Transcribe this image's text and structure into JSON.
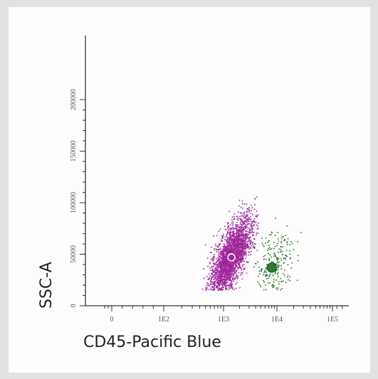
{
  "chart_data": {
    "type": "scatter",
    "xlabel": "CD45-Pacific Blue",
    "ylabel": "SSC-A",
    "x_scale": "biexponential",
    "x_ticks": [
      {
        "value": 0,
        "label": "0"
      },
      {
        "value": 100,
        "label": "1E2"
      },
      {
        "value": 1000,
        "label": "1E3"
      },
      {
        "value": 10000,
        "label": "1E4"
      },
      {
        "value": 100000,
        "label": "1E5"
      }
    ],
    "y_ticks": [
      {
        "value": 0,
        "label": "0"
      },
      {
        "value": 50000,
        "label": "50000"
      },
      {
        "value": 100000,
        "label": "100000"
      },
      {
        "value": 150000,
        "label": "150000"
      },
      {
        "value": 200000,
        "label": "200000"
      }
    ],
    "ylim": [
      0,
      262144
    ],
    "grid": false,
    "series": [
      {
        "color": "#a0259b",
        "count": 2600,
        "center": {
          "x": 1400,
          "y": 48000
        },
        "x_range": [
          250,
          4500
        ],
        "y_range": [
          15000,
          110000
        ],
        "marker_center": {
          "x": 1400,
          "y": 47000
        }
      },
      {
        "color": "#2f7d32",
        "count": 260,
        "center": {
          "x": 8000,
          "y": 38000
        },
        "x_range": [
          3000,
          40000
        ],
        "y_range": [
          15000,
          105000
        ],
        "marker_center": {
          "x": 8000,
          "y": 37000
        }
      }
    ]
  }
}
